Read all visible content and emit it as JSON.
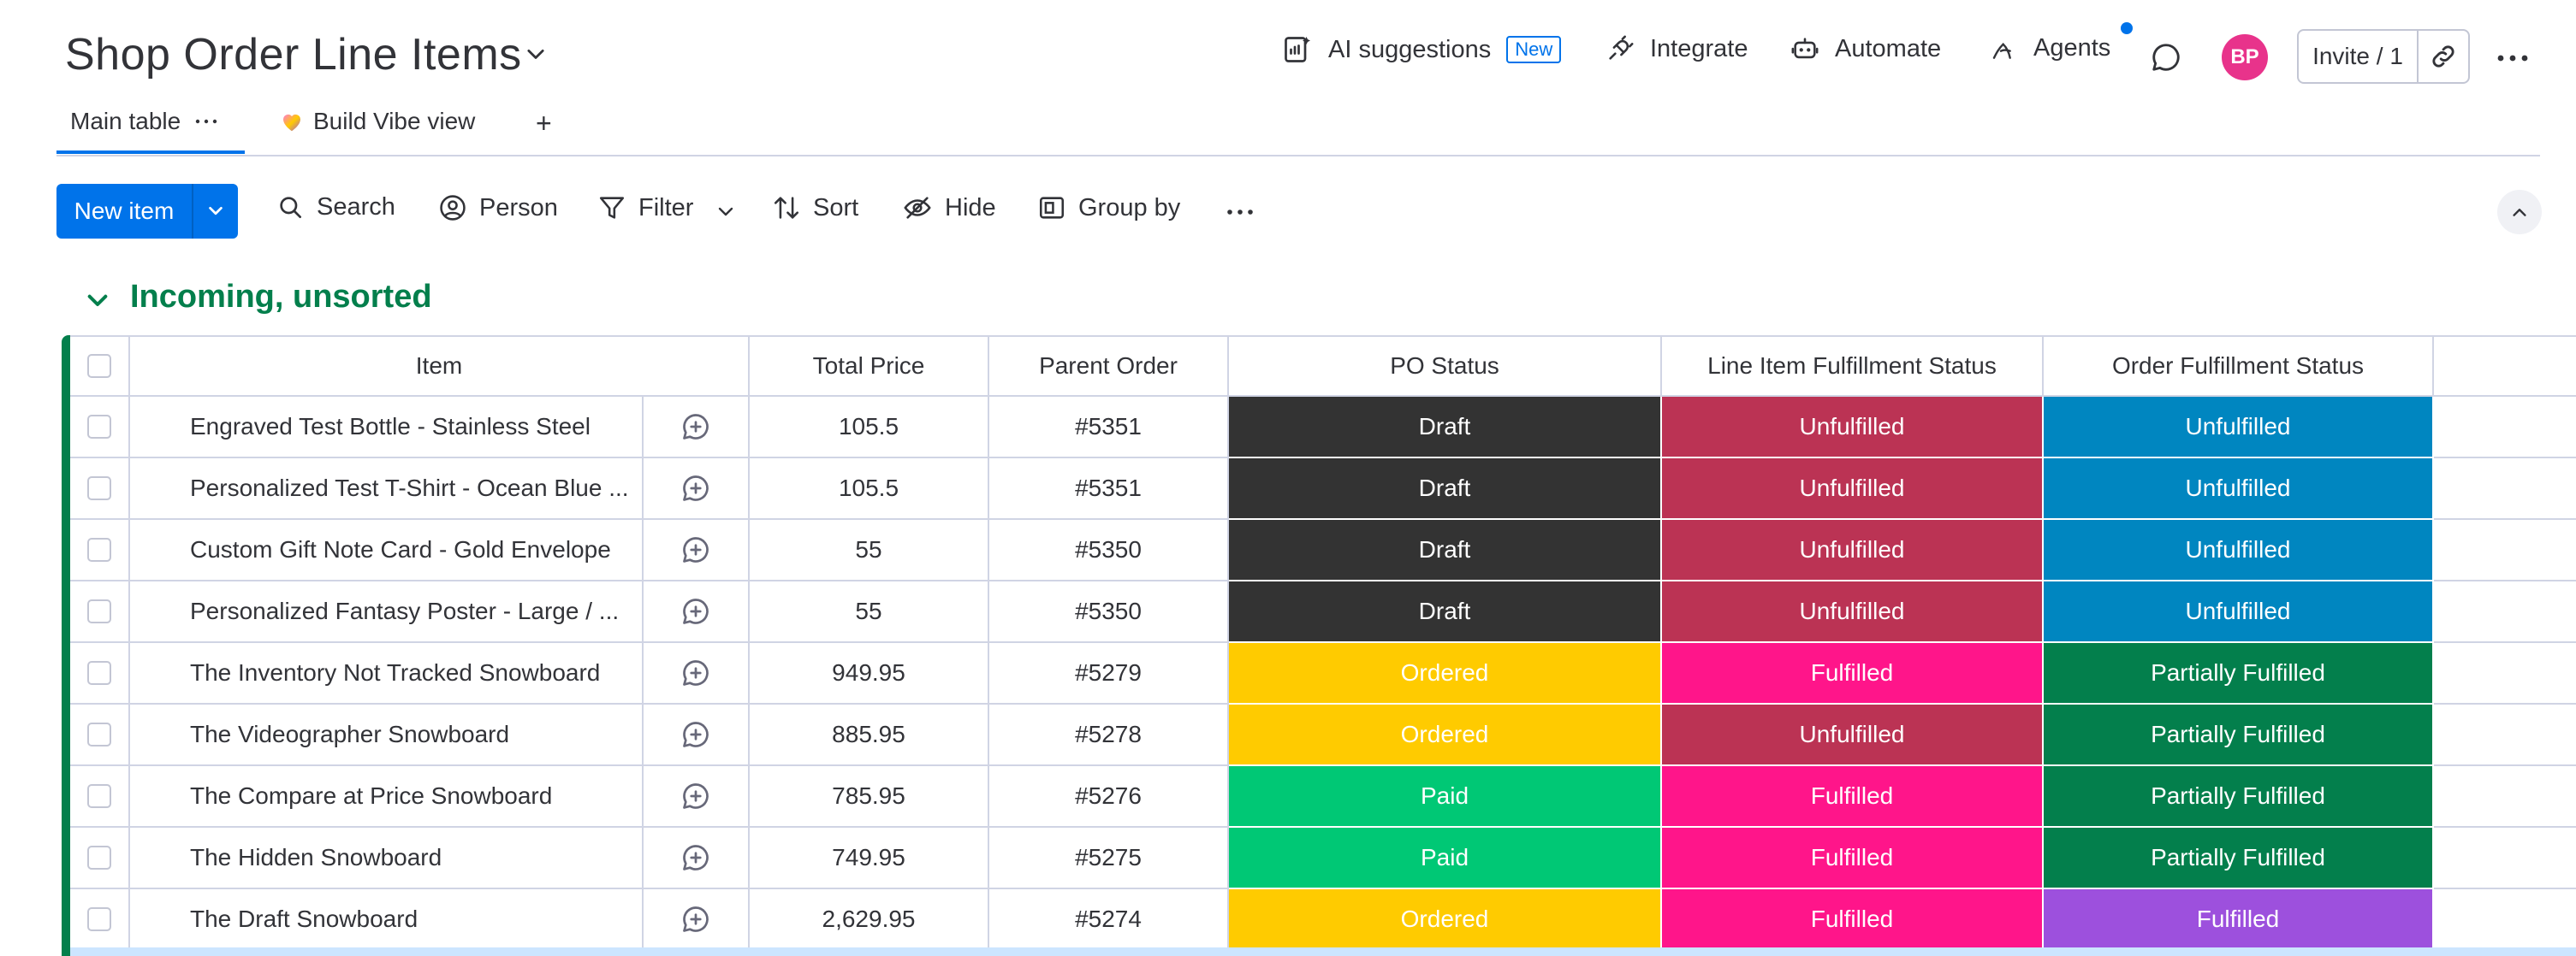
{
  "header": {
    "title": "Shop Order Line Items",
    "ai_suggestions": "AI suggestions",
    "new_badge": "New",
    "integrate": "Integrate",
    "automate": "Automate",
    "agents": "Agents",
    "avatar_initials": "BP",
    "invite": "Invite / 1"
  },
  "tabs": {
    "main_table": "Main table",
    "build_vibe": "Build Vibe view",
    "add": "+"
  },
  "toolbar": {
    "new_item": "New item",
    "search": "Search",
    "person": "Person",
    "filter": "Filter",
    "sort": "Sort",
    "hide": "Hide",
    "group_by": "Group by"
  },
  "group": {
    "title": "Incoming, unsorted"
  },
  "table": {
    "columns": [
      "Item",
      "Total Price",
      "Parent Order",
      "PO Status",
      "Line Item Fulfillment Status",
      "Order Fulfillment Status"
    ],
    "rows": [
      {
        "item": "Engraved Test Bottle - Stainless Steel",
        "price": "105.5",
        "order": "#5351",
        "po": "Draft",
        "line": "Unfulfilled",
        "ofs": "Unfulfilled"
      },
      {
        "item": "Personalized Test T-Shirt - Ocean Blue ...",
        "price": "105.5",
        "order": "#5351",
        "po": "Draft",
        "line": "Unfulfilled",
        "ofs": "Unfulfilled"
      },
      {
        "item": "Custom Gift Note Card - Gold Envelope",
        "price": "55",
        "order": "#5350",
        "po": "Draft",
        "line": "Unfulfilled",
        "ofs": "Unfulfilled"
      },
      {
        "item": "Personalized Fantasy Poster - Large / ...",
        "price": "55",
        "order": "#5350",
        "po": "Draft",
        "line": "Unfulfilled",
        "ofs": "Unfulfilled"
      },
      {
        "item": "The Inventory Not Tracked Snowboard",
        "price": "949.95",
        "order": "#5279",
        "po": "Ordered",
        "line": "Fulfilled",
        "ofs": "Partially Fulfilled"
      },
      {
        "item": "The Videographer Snowboard",
        "price": "885.95",
        "order": "#5278",
        "po": "Ordered",
        "line": "Unfulfilled",
        "ofs": "Partially Fulfilled"
      },
      {
        "item": "The Compare at Price Snowboard",
        "price": "785.95",
        "order": "#5276",
        "po": "Paid",
        "line": "Fulfilled",
        "ofs": "Partially Fulfilled"
      },
      {
        "item": "The Hidden Snowboard",
        "price": "749.95",
        "order": "#5275",
        "po": "Paid",
        "line": "Fulfilled",
        "ofs": "Partially Fulfilled"
      },
      {
        "item": "The Draft Snowboard",
        "price": "2,629.95",
        "order": "#5274",
        "po": "Ordered",
        "line": "Fulfilled",
        "ofs": "Fulfilled"
      }
    ]
  },
  "colors": {
    "accent": "#0073ea",
    "group": "#037f4c",
    "status": {
      "po": {
        "Draft": "#333333",
        "Ordered": "#ffcb00",
        "Paid": "#00c875"
      },
      "line": {
        "Unfulfilled": "#bb3354",
        "Fulfilled": "#ff158a"
      },
      "ofs": {
        "Unfulfilled": "#0086c0",
        "Partially Fulfilled": "#037f4c",
        "Fulfilled": "#9d50dd"
      }
    }
  }
}
